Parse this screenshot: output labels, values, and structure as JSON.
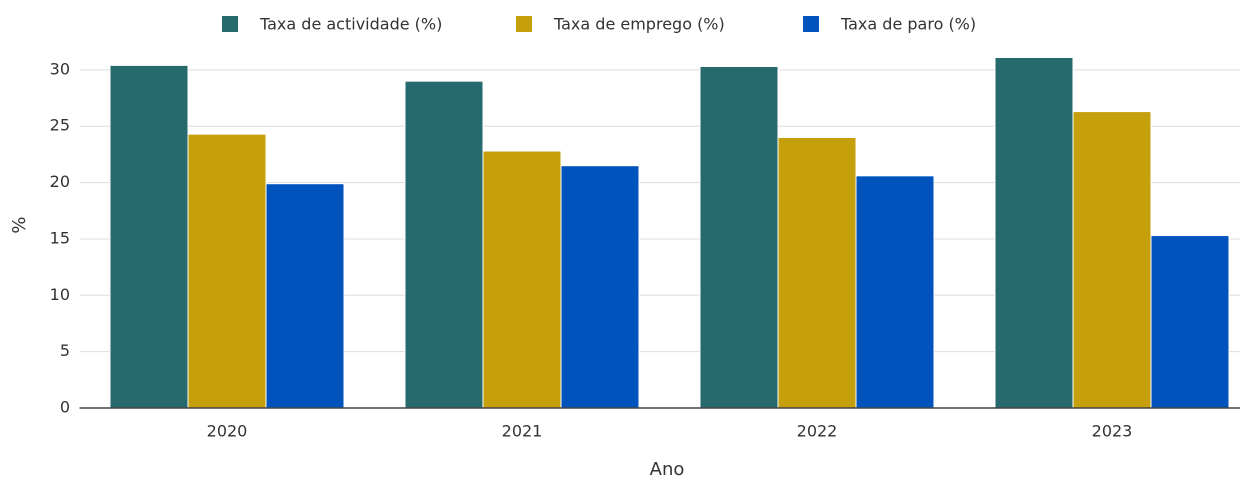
{
  "chart_data": {
    "type": "bar",
    "x_label": "Ano",
    "y_label": "%",
    "categories": [
      "2020",
      "2021",
      "2022",
      "2023"
    ],
    "series": [
      {
        "name": "Taxa de actividade (%)",
        "color": "#276a6e",
        "values": [
          30.4,
          29.0,
          30.3,
          31.1
        ]
      },
      {
        "name": "Taxa de emprego (%)",
        "color": "#c69f0c",
        "values": [
          24.3,
          22.8,
          24.0,
          26.3
        ]
      },
      {
        "name": "Taxa de paro (%)",
        "color": "#0053bd",
        "values": [
          19.9,
          21.5,
          20.6,
          15.3
        ]
      }
    ],
    "ylim": [
      0,
      30.7
    ],
    "yticks": [
      0,
      5,
      10,
      15,
      20,
      25,
      30
    ],
    "grid": true,
    "legend": "top"
  }
}
